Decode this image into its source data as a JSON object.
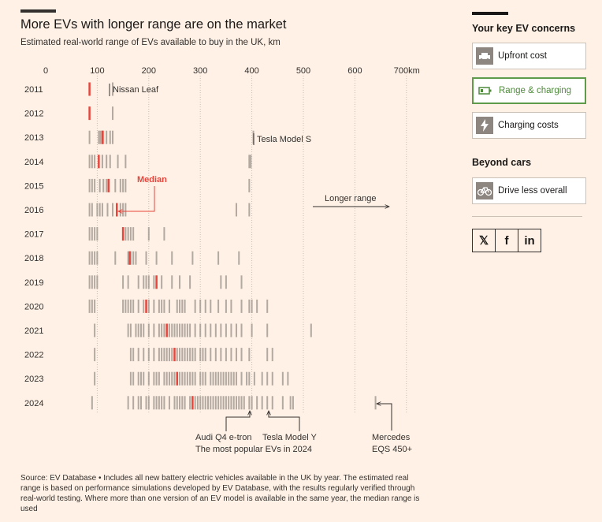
{
  "header": {
    "title": "More EVs with longer range are on the market",
    "subtitle": "Estimated real-world range of EVs available to buy in the UK, km"
  },
  "source_note": "Source: EV Database • Includes all new battery electric vehicles available in the UK by year. The estimated real range is based on performance simulations developed by EV Database, with the results regularly verified through real-world testing. Where more than one version of an EV model is available in the same year, the median range is used",
  "colors": {
    "bar": "#a49c95",
    "median": "#e8453c",
    "text": "#33302e",
    "grid": "#c9bdb2",
    "background": "#fff1e5",
    "accent_green": "#4f8a3c"
  },
  "chart_data": {
    "type": "strip",
    "x_tick_labels": [
      "0",
      "100",
      "200",
      "300",
      "400",
      "500",
      "600",
      "700km"
    ],
    "xlim": [
      0,
      700
    ],
    "years": [
      "2011",
      "2012",
      "2013",
      "2014",
      "2015",
      "2016",
      "2017",
      "2018",
      "2019",
      "2020",
      "2021",
      "2022",
      "2023",
      "2024"
    ],
    "ranges": [
      [
        85,
        130
      ],
      [
        85,
        130
      ],
      [
        85,
        103,
        106,
        110,
        112,
        118,
        125,
        130,
        403
      ],
      [
        85,
        90,
        95,
        103,
        110,
        118,
        125,
        140,
        155,
        395,
        398
      ],
      [
        85,
        90,
        95,
        105,
        112,
        118,
        122,
        135,
        145,
        150,
        155,
        395
      ],
      [
        85,
        90,
        100,
        105,
        110,
        120,
        130,
        138,
        145,
        150,
        155,
        370,
        395
      ],
      [
        85,
        90,
        95,
        100,
        150,
        155,
        160,
        165,
        170,
        200,
        230
      ],
      [
        85,
        90,
        95,
        100,
        135,
        160,
        163,
        165,
        170,
        175,
        195,
        215,
        245,
        285,
        335,
        375
      ],
      [
        85,
        90,
        95,
        100,
        150,
        160,
        180,
        190,
        195,
        200,
        210,
        215,
        225,
        245,
        260,
        280,
        340,
        350,
        380
      ],
      [
        85,
        90,
        95,
        150,
        155,
        160,
        165,
        170,
        180,
        190,
        200,
        210,
        220,
        225,
        230,
        240,
        255,
        260,
        265,
        270,
        290,
        300,
        310,
        320,
        335,
        350,
        360,
        380,
        395,
        400,
        410,
        430
      ],
      [
        95,
        160,
        165,
        175,
        180,
        185,
        190,
        200,
        210,
        220,
        225,
        230,
        240,
        245,
        250,
        255,
        260,
        265,
        270,
        275,
        280,
        290,
        300,
        310,
        320,
        330,
        340,
        350,
        360,
        370,
        380,
        400,
        430,
        515
      ],
      [
        95,
        165,
        170,
        180,
        190,
        200,
        210,
        220,
        225,
        230,
        235,
        240,
        245,
        250,
        255,
        260,
        265,
        270,
        275,
        280,
        285,
        290,
        300,
        305,
        310,
        320,
        330,
        340,
        350,
        360,
        370,
        380,
        395,
        430,
        440
      ],
      [
        95,
        165,
        170,
        180,
        185,
        190,
        200,
        210,
        215,
        220,
        230,
        235,
        240,
        245,
        250,
        255,
        260,
        265,
        270,
        275,
        280,
        285,
        290,
        300,
        305,
        310,
        320,
        325,
        330,
        335,
        340,
        345,
        350,
        355,
        360,
        365,
        370,
        380,
        390,
        395,
        405,
        420,
        430,
        440,
        460,
        470
      ],
      [
        90,
        160,
        170,
        180,
        185,
        195,
        200,
        210,
        215,
        220,
        225,
        230,
        240,
        250,
        255,
        260,
        265,
        270,
        280,
        285,
        290,
        295,
        300,
        305,
        310,
        315,
        320,
        325,
        330,
        335,
        340,
        345,
        350,
        355,
        360,
        365,
        370,
        375,
        380,
        385,
        395,
        400,
        410,
        420,
        430,
        440,
        460,
        475,
        480,
        640
      ]
    ],
    "medians": [
      85,
      85,
      110,
      103,
      122,
      138,
      150,
      163,
      215,
      195,
      235,
      250,
      255,
      285
    ],
    "annotations": {
      "nissan_leaf": "Nissan Leaf",
      "tesla_model_s": "Tesla Model S",
      "median": "Median",
      "longer_range": "Longer range",
      "audi": "Audi Q4 e-tron",
      "tesla_y": "Tesla Model Y",
      "popular": "The most popular EVs in 2024",
      "mercedes_line1": "Mercedes",
      "mercedes_line2": "EQS 450+"
    }
  },
  "sidebar": {
    "heading": "Your key EV concerns",
    "items": [
      {
        "label": "Upfront cost",
        "icon": "car-icon",
        "active": false
      },
      {
        "label": "Range & charging",
        "icon": "battery-icon",
        "active": true
      },
      {
        "label": "Charging costs",
        "icon": "lightning-icon",
        "active": false
      }
    ],
    "beyond_heading": "Beyond cars",
    "beyond_items": [
      {
        "label": "Drive less overall",
        "icon": "bicycle-icon"
      }
    ],
    "share": {
      "x": "𝕏",
      "facebook": "f",
      "linkedin": "in"
    }
  }
}
